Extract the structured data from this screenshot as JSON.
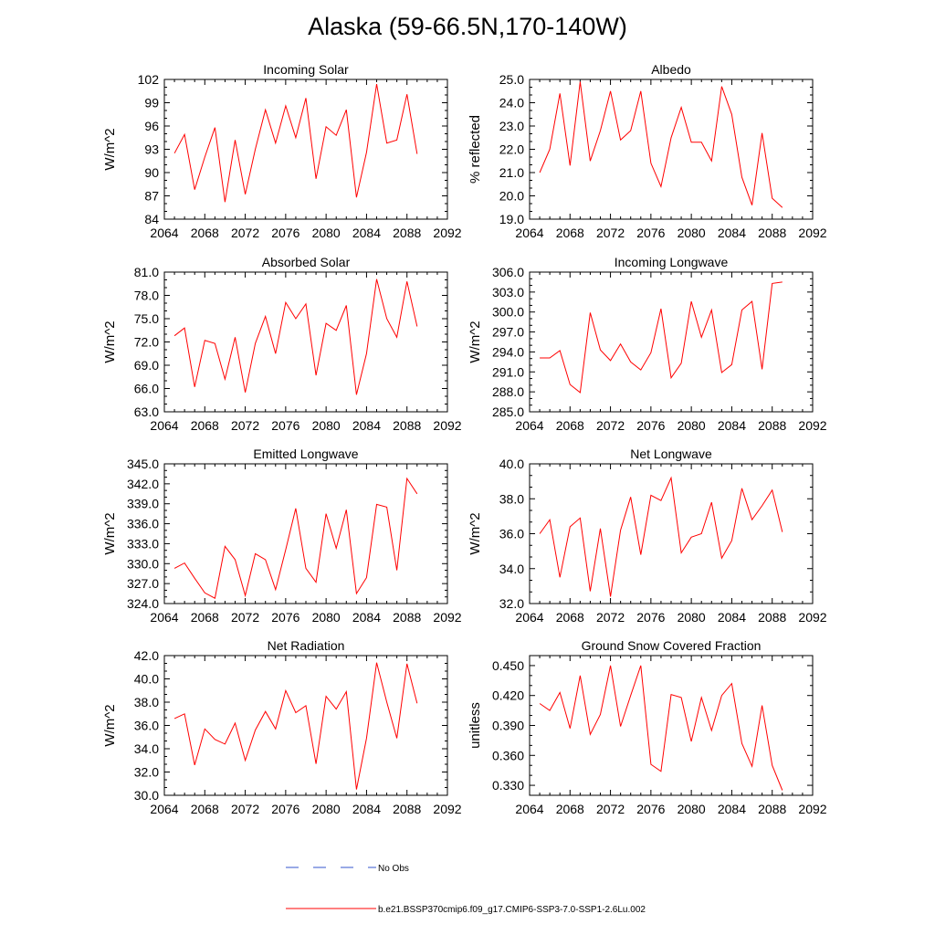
{
  "title": "Alaska (59-66.5N,170-140W)",
  "legend": [
    {
      "label": "No Obs",
      "color": "#3355cc",
      "style": "dashed"
    },
    {
      "label": "b.e21.BSSP370cmip6.f09_g17.CMIP6-SSP3-7.0-SSP1-2.6Lu.002",
      "color": "#ff0000",
      "style": "solid"
    }
  ],
  "colors": {
    "series": "#ff0000",
    "obs": "#3355cc",
    "axis": "#000000"
  },
  "chart_data": [
    {
      "type": "line",
      "title": "Incoming Solar",
      "ylabel": "W/m^2",
      "xlim": [
        2064,
        2092
      ],
      "xticks": [
        2064,
        2068,
        2072,
        2076,
        2080,
        2084,
        2088,
        2092
      ],
      "ylim": [
        84,
        102
      ],
      "yticks": [
        "84",
        "87",
        "90",
        "93",
        "96",
        "99",
        "102"
      ],
      "x": [
        2065,
        2066,
        2067,
        2068,
        2069,
        2070,
        2071,
        2072,
        2073,
        2074,
        2075,
        2076,
        2077,
        2078,
        2079,
        2080,
        2081,
        2082,
        2083,
        2084,
        2085,
        2086,
        2087,
        2088,
        2089
      ],
      "series": [
        {
          "values": [
            92.5,
            94.9,
            87.8,
            92.0,
            95.8,
            86.2,
            94.2,
            87.2,
            93.0,
            98.1,
            93.8,
            98.6,
            94.5,
            99.6,
            89.2,
            95.9,
            94.8,
            98.1,
            86.8,
            92.6,
            101.4,
            93.8,
            94.2,
            100.1,
            92.4
          ]
        }
      ]
    },
    {
      "type": "line",
      "title": "Albedo",
      "ylabel": "% reflected",
      "xlim": [
        2064,
        2092
      ],
      "xticks": [
        2064,
        2068,
        2072,
        2076,
        2080,
        2084,
        2088,
        2092
      ],
      "ylim": [
        19,
        25
      ],
      "yticks": [
        "19.0",
        "20.0",
        "21.0",
        "22.0",
        "23.0",
        "24.0",
        "25.0"
      ],
      "x": [
        2065,
        2066,
        2067,
        2068,
        2069,
        2070,
        2071,
        2072,
        2073,
        2074,
        2075,
        2076,
        2077,
        2078,
        2079,
        2080,
        2081,
        2082,
        2083,
        2084,
        2085,
        2086,
        2087,
        2088,
        2089
      ],
      "series": [
        {
          "values": [
            21.0,
            22.0,
            24.4,
            21.3,
            24.9,
            21.5,
            22.8,
            24.5,
            22.4,
            22.8,
            24.5,
            21.4,
            20.4,
            22.5,
            23.8,
            22.3,
            22.3,
            21.5,
            24.7,
            23.5,
            20.8,
            19.6,
            22.7,
            19.9,
            19.5
          ]
        }
      ]
    },
    {
      "type": "line",
      "title": "Absorbed Solar",
      "ylabel": "W/m^2",
      "xlim": [
        2064,
        2092
      ],
      "xticks": [
        2064,
        2068,
        2072,
        2076,
        2080,
        2084,
        2088,
        2092
      ],
      "ylim": [
        63,
        81
      ],
      "yticks": [
        "63.0",
        "66.0",
        "69.0",
        "72.0",
        "75.0",
        "78.0",
        "81.0"
      ],
      "x": [
        2065,
        2066,
        2067,
        2068,
        2069,
        2070,
        2071,
        2072,
        2073,
        2074,
        2075,
        2076,
        2077,
        2078,
        2079,
        2080,
        2081,
        2082,
        2083,
        2084,
        2085,
        2086,
        2087,
        2088,
        2089
      ],
      "series": [
        {
          "values": [
            72.8,
            73.8,
            66.2,
            72.2,
            71.8,
            67.2,
            72.6,
            65.5,
            71.8,
            75.3,
            70.5,
            77.1,
            75.0,
            76.9,
            67.7,
            74.4,
            73.5,
            76.7,
            65.2,
            70.5,
            80.1,
            75.0,
            72.6,
            79.8,
            74.0
          ]
        }
      ]
    },
    {
      "type": "line",
      "title": "Incoming Longwave",
      "ylabel": "W/m^2",
      "xlim": [
        2064,
        2092
      ],
      "xticks": [
        2064,
        2068,
        2072,
        2076,
        2080,
        2084,
        2088,
        2092
      ],
      "ylim": [
        285,
        306
      ],
      "yticks": [
        "285.0",
        "288.0",
        "291.0",
        "294.0",
        "297.0",
        "300.0",
        "303.0",
        "306.0"
      ],
      "x": [
        2065,
        2066,
        2067,
        2068,
        2069,
        2070,
        2071,
        2072,
        2073,
        2074,
        2075,
        2076,
        2077,
        2078,
        2079,
        2080,
        2081,
        2082,
        2083,
        2084,
        2085,
        2086,
        2087,
        2088,
        2089
      ],
      "series": [
        {
          "values": [
            293.1,
            293.1,
            294.2,
            289.1,
            287.9,
            299.9,
            294.3,
            292.7,
            295.2,
            292.5,
            291.3,
            293.9,
            300.5,
            290.1,
            292.3,
            301.6,
            296.2,
            300.3,
            290.9,
            292.1,
            300.3,
            301.6,
            291.4,
            304.3,
            304.5
          ]
        }
      ]
    },
    {
      "type": "line",
      "title": "Emitted Longwave",
      "ylabel": "W/m^2",
      "xlim": [
        2064,
        2092
      ],
      "xticks": [
        2064,
        2068,
        2072,
        2076,
        2080,
        2084,
        2088,
        2092
      ],
      "ylim": [
        324,
        345
      ],
      "yticks": [
        "324.0",
        "327.0",
        "330.0",
        "333.0",
        "336.0",
        "339.0",
        "342.0",
        "345.0"
      ],
      "x": [
        2065,
        2066,
        2067,
        2068,
        2069,
        2070,
        2071,
        2072,
        2073,
        2074,
        2075,
        2076,
        2077,
        2078,
        2079,
        2080,
        2081,
        2082,
        2083,
        2084,
        2085,
        2086,
        2087,
        2088,
        2089
      ],
      "series": [
        {
          "values": [
            329.3,
            330.1,
            327.8,
            325.6,
            324.8,
            332.6,
            330.6,
            325.2,
            331.5,
            330.6,
            326.1,
            332.1,
            338.3,
            329.3,
            327.2,
            337.5,
            332.3,
            338.1,
            325.5,
            327.9,
            338.9,
            338.5,
            329.0,
            342.8,
            340.5
          ]
        }
      ]
    },
    {
      "type": "line",
      "title": "Net Longwave",
      "ylabel": "W/m^2",
      "xlim": [
        2064,
        2092
      ],
      "xticks": [
        2064,
        2068,
        2072,
        2076,
        2080,
        2084,
        2088,
        2092
      ],
      "ylim": [
        32,
        40
      ],
      "yticks": [
        "32.0",
        "34.0",
        "36.0",
        "38.0",
        "40.0"
      ],
      "x": [
        2065,
        2066,
        2067,
        2068,
        2069,
        2070,
        2071,
        2072,
        2073,
        2074,
        2075,
        2076,
        2077,
        2078,
        2079,
        2080,
        2081,
        2082,
        2083,
        2084,
        2085,
        2086,
        2087,
        2088,
        2089
      ],
      "series": [
        {
          "values": [
            36.0,
            36.8,
            33.5,
            36.4,
            36.9,
            32.7,
            36.3,
            32.4,
            36.2,
            38.1,
            34.8,
            38.2,
            37.9,
            39.2,
            34.9,
            35.8,
            36.0,
            37.8,
            34.6,
            35.6,
            38.6,
            36.8,
            37.6,
            38.5,
            36.1
          ]
        }
      ]
    },
    {
      "type": "line",
      "title": "Net Radiation",
      "ylabel": "W/m^2",
      "xlim": [
        2064,
        2092
      ],
      "xticks": [
        2064,
        2068,
        2072,
        2076,
        2080,
        2084,
        2088,
        2092
      ],
      "ylim": [
        30,
        42
      ],
      "yticks": [
        "30.0",
        "32.0",
        "34.0",
        "36.0",
        "38.0",
        "40.0",
        "42.0"
      ],
      "x": [
        2065,
        2066,
        2067,
        2068,
        2069,
        2070,
        2071,
        2072,
        2073,
        2074,
        2075,
        2076,
        2077,
        2078,
        2079,
        2080,
        2081,
        2082,
        2083,
        2084,
        2085,
        2086,
        2087,
        2088,
        2089
      ],
      "series": [
        {
          "values": [
            36.6,
            37.0,
            32.6,
            35.7,
            34.8,
            34.4,
            36.2,
            33.0,
            35.6,
            37.2,
            35.7,
            39.0,
            37.1,
            37.7,
            32.7,
            38.5,
            37.4,
            38.9,
            30.5,
            34.9,
            41.4,
            38.0,
            34.9,
            41.3,
            37.9
          ]
        }
      ]
    },
    {
      "type": "line",
      "title": "Ground Snow Covered Fraction",
      "ylabel": "unitless",
      "xlim": [
        2064,
        2092
      ],
      "xticks": [
        2064,
        2068,
        2072,
        2076,
        2080,
        2084,
        2088,
        2092
      ],
      "ylim": [
        0.32,
        0.46
      ],
      "yticks": [
        "0.330",
        "0.360",
        "0.390",
        "0.420",
        "0.450"
      ],
      "x": [
        2065,
        2066,
        2067,
        2068,
        2069,
        2070,
        2071,
        2072,
        2073,
        2074,
        2075,
        2076,
        2077,
        2078,
        2079,
        2080,
        2081,
        2082,
        2083,
        2084,
        2085,
        2086,
        2087,
        2088,
        2089
      ],
      "series": [
        {
          "values": [
            0.412,
            0.405,
            0.423,
            0.387,
            0.44,
            0.381,
            0.401,
            0.45,
            0.389,
            0.42,
            0.45,
            0.351,
            0.344,
            0.421,
            0.418,
            0.374,
            0.418,
            0.385,
            0.42,
            0.432,
            0.372,
            0.349,
            0.41,
            0.35,
            0.325
          ]
        }
      ]
    }
  ]
}
